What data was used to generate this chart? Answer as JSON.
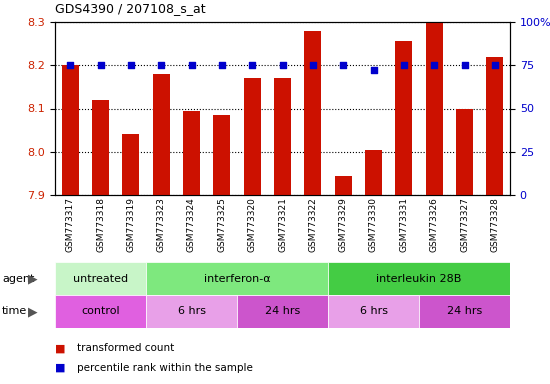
{
  "title": "GDS4390 / 207108_s_at",
  "samples": [
    "GSM773317",
    "GSM773318",
    "GSM773319",
    "GSM773323",
    "GSM773324",
    "GSM773325",
    "GSM773320",
    "GSM773321",
    "GSM773322",
    "GSM773329",
    "GSM773330",
    "GSM773331",
    "GSM773326",
    "GSM773327",
    "GSM773328"
  ],
  "red_values": [
    8.2,
    8.12,
    8.04,
    8.18,
    8.095,
    8.085,
    8.17,
    8.17,
    8.28,
    7.945,
    8.005,
    8.255,
    8.3,
    8.1,
    8.22
  ],
  "blue_values": [
    75,
    75,
    75,
    75,
    75,
    75,
    75,
    75,
    75,
    75,
    72,
    75,
    75,
    75,
    75
  ],
  "ylim_left": [
    7.9,
    8.3
  ],
  "ylim_right": [
    0,
    100
  ],
  "yticks_left": [
    7.9,
    8.0,
    8.1,
    8.2,
    8.3
  ],
  "yticks_right": [
    0,
    25,
    50,
    75,
    100
  ],
  "ytick_labels_right": [
    "0",
    "25",
    "50",
    "75",
    "100%"
  ],
  "agent_groups": [
    {
      "label": "untreated",
      "start": 0,
      "end": 3,
      "color": "#c8f5c8"
    },
    {
      "label": "interferon-α",
      "start": 3,
      "end": 9,
      "color": "#7ee87e"
    },
    {
      "label": "interleukin 28B",
      "start": 9,
      "end": 15,
      "color": "#44cc44"
    }
  ],
  "time_groups": [
    {
      "label": "control",
      "start": 0,
      "end": 3,
      "color": "#e060e0"
    },
    {
      "label": "6 hrs",
      "start": 3,
      "end": 6,
      "color": "#e8a0e8"
    },
    {
      "label": "24 hrs",
      "start": 6,
      "end": 9,
      "color": "#cc55cc"
    },
    {
      "label": "6 hrs",
      "start": 9,
      "end": 12,
      "color": "#e8a0e8"
    },
    {
      "label": "24 hrs",
      "start": 12,
      "end": 15,
      "color": "#cc55cc"
    }
  ],
  "legend_red_label": "transformed count",
  "legend_blue_label": "percentile rank within the sample",
  "bar_color": "#cc1100",
  "dot_color": "#0000cc",
  "grid_color": "#000000",
  "bg_color": "#ffffff",
  "tick_area_color": "#bbbbbb",
  "left_label_color": "#cc2200",
  "right_label_color": "#0000cc"
}
